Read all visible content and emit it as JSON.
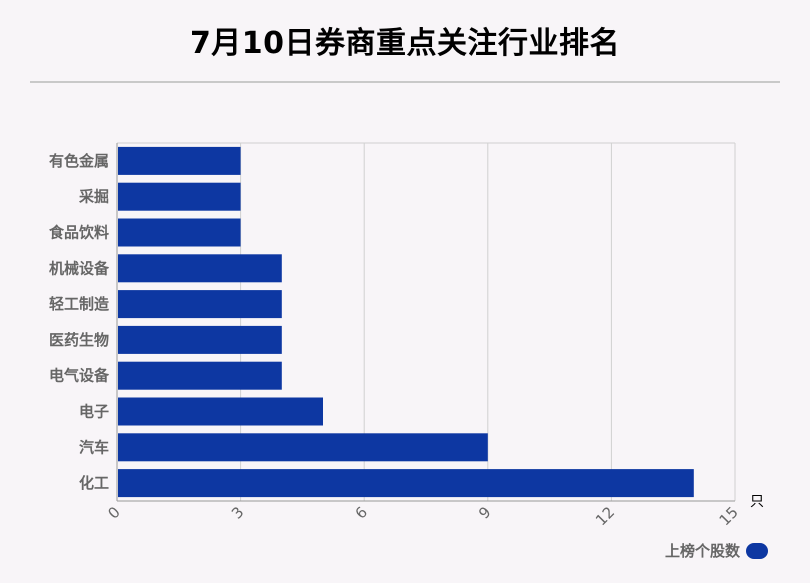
{
  "title": "7月10日券商重点关注行业排名",
  "colors": {
    "bar": "#0d37a2",
    "background": "#f8f5f8",
    "grid": "#d0d0d0"
  },
  "chart_data": {
    "type": "bar",
    "orientation": "horizontal",
    "categories": [
      "有色金属",
      "采掘",
      "食品饮料",
      "机械设备",
      "轻工制造",
      "医药生物",
      "电气设备",
      "电子",
      "汽车",
      "化工"
    ],
    "series": [
      {
        "name": "上榜个股数",
        "values": [
          3,
          3,
          3,
          4,
          4,
          4,
          4,
          5,
          9,
          14
        ]
      }
    ],
    "xlim": [
      0,
      15
    ],
    "xticks": [
      "0",
      "3",
      "6",
      "9",
      "12",
      "15"
    ],
    "xunit": "只",
    "grid": true,
    "legend_position": "bottom-right"
  }
}
